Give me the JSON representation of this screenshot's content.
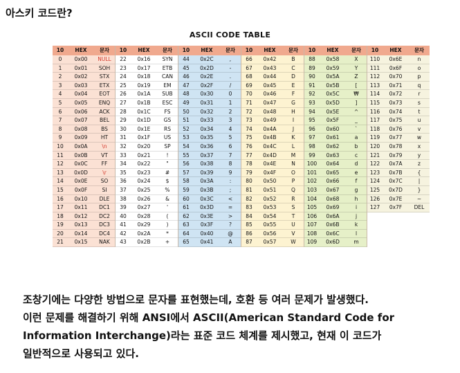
{
  "question": "아스키 코드란?",
  "table_title": "ASCII CODE TABLE",
  "headers": [
    "10",
    "HEX",
    "문자"
  ],
  "groups": [
    {
      "rows": [
        [
          "0",
          "0x00",
          "NULL"
        ],
        [
          "1",
          "0x01",
          "SOH"
        ],
        [
          "2",
          "0x02",
          "STX"
        ],
        [
          "3",
          "0x03",
          "ETX"
        ],
        [
          "4",
          "0x04",
          "EOT"
        ],
        [
          "5",
          "0x05",
          "ENQ"
        ],
        [
          "6",
          "0x06",
          "ACK"
        ],
        [
          "7",
          "0x07",
          "BEL"
        ],
        [
          "8",
          "0x08",
          "BS"
        ],
        [
          "9",
          "0x09",
          "HT"
        ],
        [
          "10",
          "0x0A",
          "\\n"
        ],
        [
          "11",
          "0x0B",
          "VT"
        ],
        [
          "12",
          "0x0C",
          "FF"
        ],
        [
          "13",
          "0x0D",
          "\\r"
        ],
        [
          "14",
          "0x0E",
          "SO"
        ],
        [
          "15",
          "0x0F",
          "SI"
        ],
        [
          "16",
          "0x10",
          "DLE"
        ],
        [
          "17",
          "0x11",
          "DC1"
        ],
        [
          "18",
          "0x12",
          "DC2"
        ],
        [
          "19",
          "0x13",
          "DC3"
        ],
        [
          "20",
          "0x14",
          "DC4"
        ],
        [
          "21",
          "0x15",
          "NAK"
        ]
      ]
    },
    {
      "rows": [
        [
          "22",
          "0x16",
          "SYN"
        ],
        [
          "23",
          "0x17",
          "ETB"
        ],
        [
          "24",
          "0x18",
          "CAN"
        ],
        [
          "25",
          "0x19",
          "EM"
        ],
        [
          "26",
          "0x1A",
          "SUB"
        ],
        [
          "27",
          "0x1B",
          "ESC"
        ],
        [
          "28",
          "0x1C",
          "FS"
        ],
        [
          "29",
          "0x1D",
          "GS"
        ],
        [
          "30",
          "0x1E",
          "RS"
        ],
        [
          "31",
          "0x1F",
          "US"
        ],
        [
          "32",
          "0x20",
          "SP"
        ],
        [
          "33",
          "0x21",
          "!"
        ],
        [
          "34",
          "0x22",
          "\""
        ],
        [
          "35",
          "0x23",
          "#"
        ],
        [
          "36",
          "0x24",
          "$"
        ],
        [
          "37",
          "0x25",
          "%"
        ],
        [
          "38",
          "0x26",
          "&"
        ],
        [
          "39",
          "0x27",
          "'"
        ],
        [
          "40",
          "0x28",
          "("
        ],
        [
          "41",
          "0x29",
          ")"
        ],
        [
          "42",
          "0x2A",
          "*"
        ],
        [
          "43",
          "0x2B",
          "+"
        ]
      ]
    },
    {
      "rows": [
        [
          "44",
          "0x2C",
          ","
        ],
        [
          "45",
          "0x2D",
          "-"
        ],
        [
          "46",
          "0x2E",
          "."
        ],
        [
          "47",
          "0x2F",
          "/"
        ],
        [
          "48",
          "0x30",
          "0"
        ],
        [
          "49",
          "0x31",
          "1"
        ],
        [
          "50",
          "0x32",
          "2"
        ],
        [
          "51",
          "0x33",
          "3"
        ],
        [
          "52",
          "0x34",
          "4"
        ],
        [
          "53",
          "0x35",
          "5"
        ],
        [
          "54",
          "0x36",
          "6"
        ],
        [
          "55",
          "0x37",
          "7"
        ],
        [
          "56",
          "0x38",
          "8"
        ],
        [
          "57",
          "0x39",
          "9"
        ],
        [
          "58",
          "0x3A",
          ":"
        ],
        [
          "59",
          "0x3B",
          ";"
        ],
        [
          "60",
          "0x3C",
          "<"
        ],
        [
          "61",
          "0x3D",
          "="
        ],
        [
          "62",
          "0x3E",
          ">"
        ],
        [
          "63",
          "0x3F",
          "?"
        ],
        [
          "64",
          "0x40",
          "@"
        ],
        [
          "65",
          "0x41",
          "A"
        ]
      ]
    },
    {
      "rows": [
        [
          "66",
          "0x42",
          "B"
        ],
        [
          "67",
          "0x43",
          "C"
        ],
        [
          "68",
          "0x44",
          "D"
        ],
        [
          "69",
          "0x45",
          "E"
        ],
        [
          "70",
          "0x46",
          "F"
        ],
        [
          "71",
          "0x47",
          "G"
        ],
        [
          "72",
          "0x48",
          "H"
        ],
        [
          "73",
          "0x49",
          "I"
        ],
        [
          "74",
          "0x4A",
          "J"
        ],
        [
          "75",
          "0x4B",
          "K"
        ],
        [
          "76",
          "0x4C",
          "L"
        ],
        [
          "77",
          "0x4D",
          "M"
        ],
        [
          "78",
          "0x4E",
          "N"
        ],
        [
          "79",
          "0x4F",
          "O"
        ],
        [
          "80",
          "0x50",
          "P"
        ],
        [
          "81",
          "0x51",
          "Q"
        ],
        [
          "82",
          "0x52",
          "R"
        ],
        [
          "83",
          "0x53",
          "S"
        ],
        [
          "84",
          "0x54",
          "T"
        ],
        [
          "85",
          "0x55",
          "U"
        ],
        [
          "86",
          "0x56",
          "V"
        ],
        [
          "87",
          "0x57",
          "W"
        ]
      ]
    },
    {
      "rows": [
        [
          "88",
          "0x58",
          "X"
        ],
        [
          "89",
          "0x59",
          "Y"
        ],
        [
          "90",
          "0x5A",
          "Z"
        ],
        [
          "91",
          "0x5B",
          "["
        ],
        [
          "92",
          "0x5C",
          "₩"
        ],
        [
          "93",
          "0x5D",
          "]"
        ],
        [
          "94",
          "0x5E",
          "^"
        ],
        [
          "95",
          "0x5F",
          "_"
        ],
        [
          "96",
          "0x60",
          "`"
        ],
        [
          "97",
          "0x61",
          "a"
        ],
        [
          "98",
          "0x62",
          "b"
        ],
        [
          "99",
          "0x63",
          "c"
        ],
        [
          "100",
          "0x64",
          "d"
        ],
        [
          "101",
          "0x65",
          "e"
        ],
        [
          "102",
          "0x66",
          "f"
        ],
        [
          "103",
          "0x67",
          "g"
        ],
        [
          "104",
          "0x68",
          "h"
        ],
        [
          "105",
          "0x69",
          "i"
        ],
        [
          "106",
          "0x6A",
          "j"
        ],
        [
          "107",
          "0x6B",
          "k"
        ],
        [
          "108",
          "0x6C",
          "l"
        ],
        [
          "109",
          "0x6D",
          "m"
        ]
      ]
    },
    {
      "rows": [
        [
          "110",
          "0x6E",
          "n"
        ],
        [
          "111",
          "0x6F",
          "o"
        ],
        [
          "112",
          "0x70",
          "p"
        ],
        [
          "113",
          "0x71",
          "q"
        ],
        [
          "114",
          "0x72",
          "r"
        ],
        [
          "115",
          "0x73",
          "s"
        ],
        [
          "116",
          "0x74",
          "t"
        ],
        [
          "117",
          "0x75",
          "u"
        ],
        [
          "118",
          "0x76",
          "v"
        ],
        [
          "119",
          "0x77",
          "w"
        ],
        [
          "120",
          "0x78",
          "x"
        ],
        [
          "121",
          "0x79",
          "y"
        ],
        [
          "122",
          "0x7A",
          "z"
        ],
        [
          "123",
          "0x7B",
          "{"
        ],
        [
          "124",
          "0x7C",
          "|"
        ],
        [
          "125",
          "0x7D",
          "}"
        ],
        [
          "126",
          "0x7E",
          "~"
        ],
        [
          "127",
          "0x7F",
          "DEL"
        ]
      ]
    }
  ],
  "highlight_red": [
    "NULL",
    "\\n",
    "\\r"
  ],
  "paragraph": [
    "조창기에는 다양한 방법으로 문자를 표현했는데, 호환 등 여러 문제가 발생했다.",
    "이런 문제를 해결하기 위해 ANSI에서 ASCII(American Standard Code for",
    "Information Interchange)라는 표준 코드 체계를 제시했고, 현재 이 코드가",
    "일반적으로 사용되고 있다."
  ]
}
